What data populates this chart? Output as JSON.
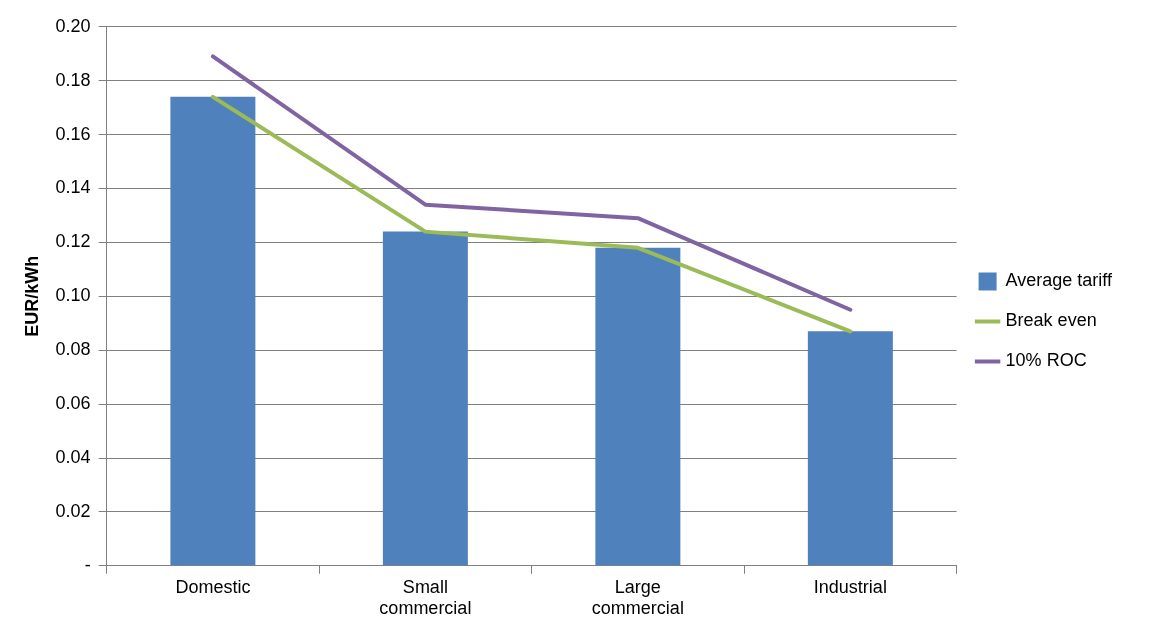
{
  "chart_data": {
    "type": "bar",
    "ylabel": "EUR/kWh",
    "categories": [
      "Domestic",
      "Small\ncommercial",
      "Large\ncommercial",
      "Industrial"
    ],
    "series": [
      {
        "name": "Average tariff",
        "color": "#4f81bd",
        "values": [
          0.174,
          0.124,
          0.118,
          0.087
        ]
      },
      {
        "name": "Break even",
        "type": "line",
        "color": "#9bbb59",
        "values": [
          0.174,
          0.124,
          0.118,
          0.087
        ]
      },
      {
        "name": "10% ROC",
        "type": "line",
        "color": "#8064a2",
        "values": [
          0.189,
          0.134,
          0.129,
          0.095
        ]
      }
    ],
    "ylim": [
      0,
      0.2
    ],
    "yticks": [
      {
        "value": 0,
        "label": "-"
      },
      0.02,
      0.04,
      0.06,
      0.08,
      {
        "value": 0.1,
        "label": "0.10"
      },
      0.12,
      0.14,
      0.16,
      0.18,
      {
        "value": 0.2,
        "label": "0.20"
      }
    ],
    "grid": "y",
    "legend": "right",
    "marker": "none",
    "line_style": "solid"
  }
}
